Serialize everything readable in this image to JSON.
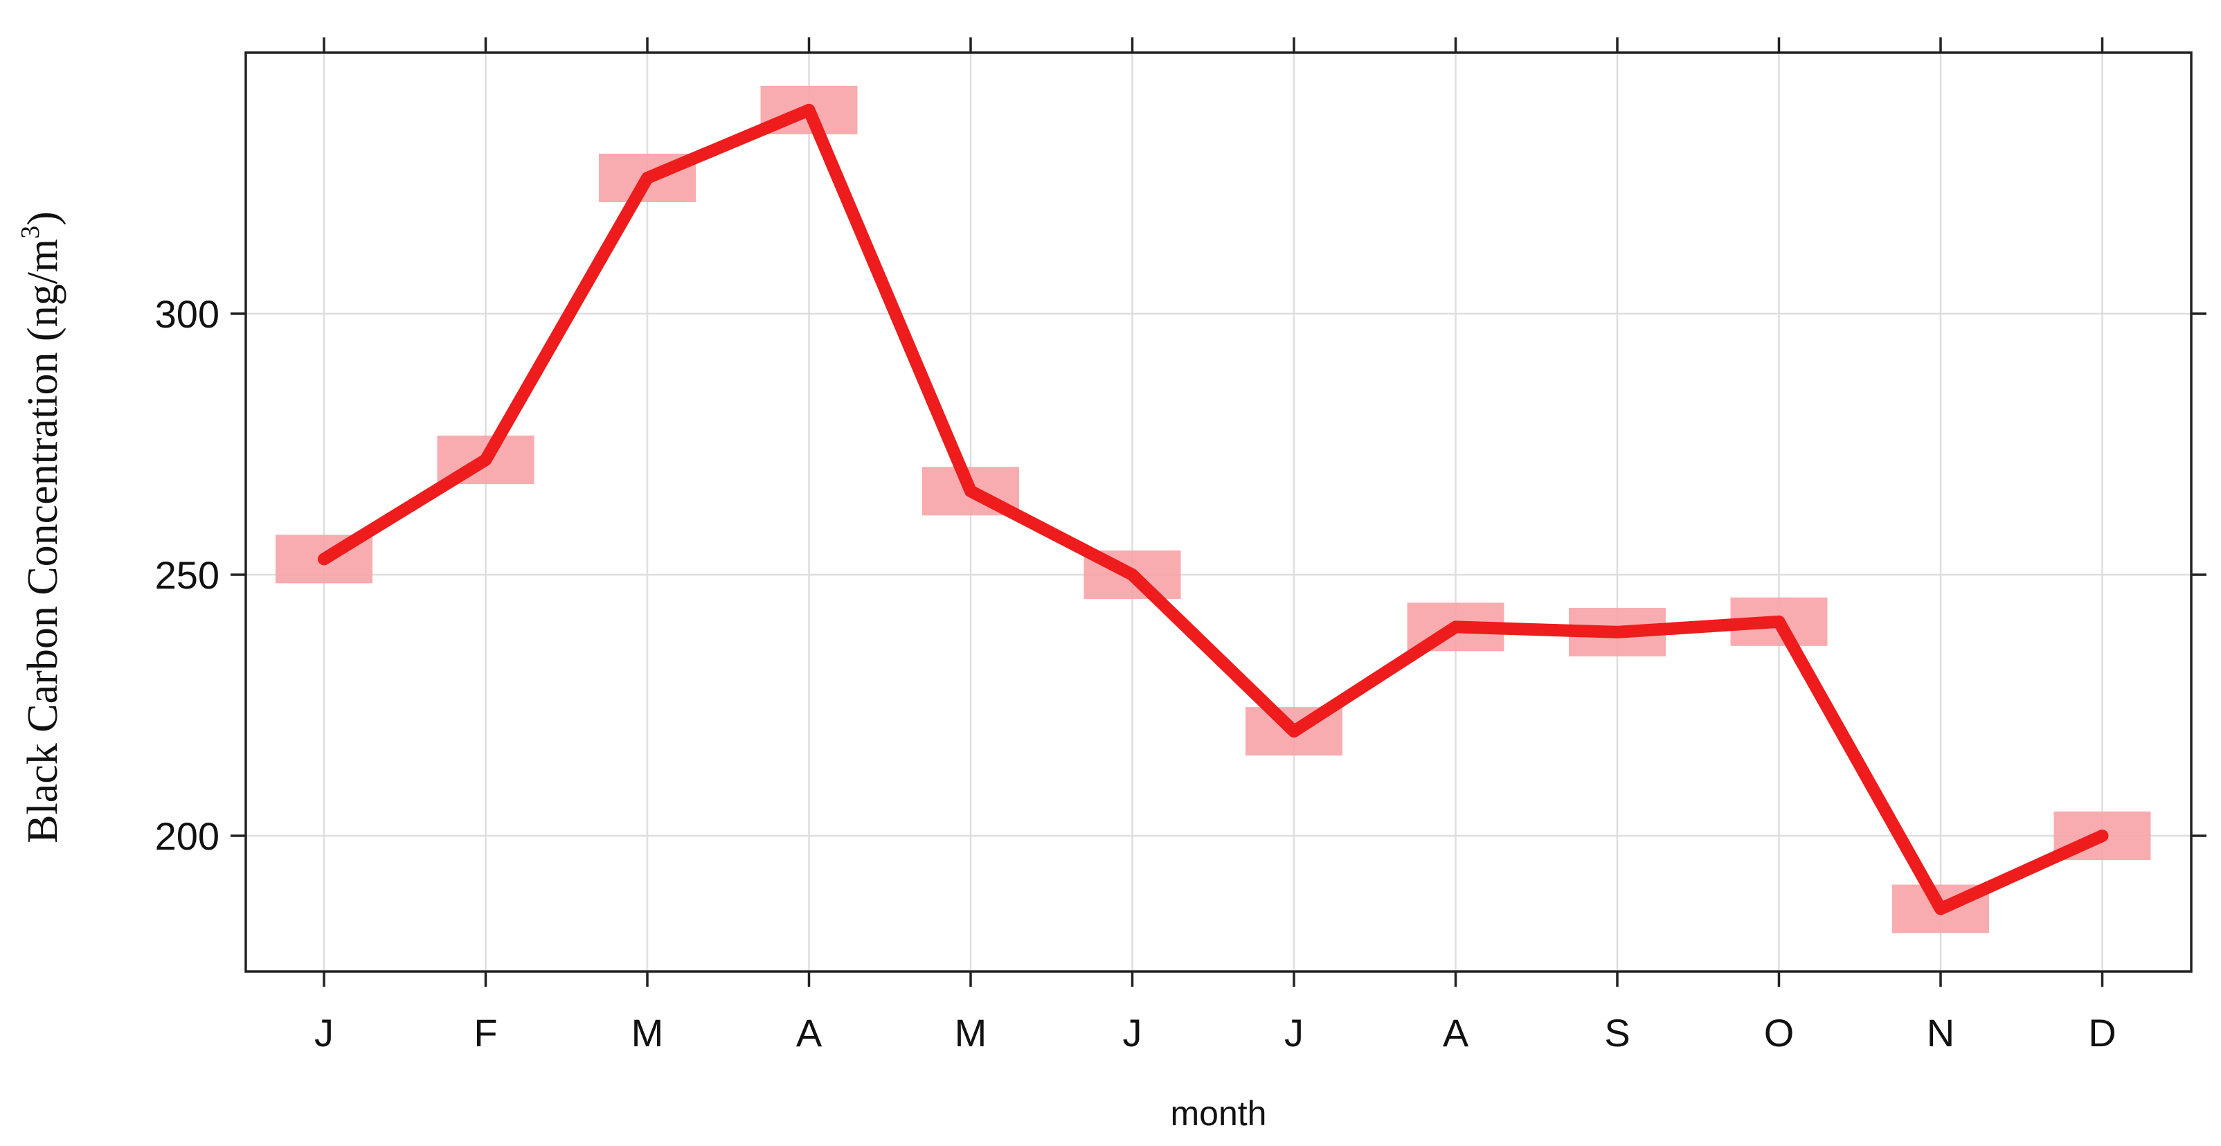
{
  "chart_data": {
    "type": "line",
    "title": "",
    "xlabel": "month",
    "ylabel_main": "Black Carbon Concentration (ng/m",
    "ylabel_superscript": "3",
    "ylabel_close": ")",
    "categories": [
      "J",
      "F",
      "M",
      "A",
      "M",
      "J",
      "J",
      "A",
      "S",
      "O",
      "N",
      "D"
    ],
    "series": [
      {
        "values": [
          253,
          272,
          326,
          339,
          266,
          250,
          220,
          240,
          239,
          241,
          186,
          200
        ],
        "color": "#ee1c1c",
        "marker_color": "#f7a3a7"
      }
    ],
    "ylim": [
      174,
      350
    ],
    "yticks": [
      200,
      250,
      300
    ],
    "grid": true,
    "legend": "none"
  }
}
